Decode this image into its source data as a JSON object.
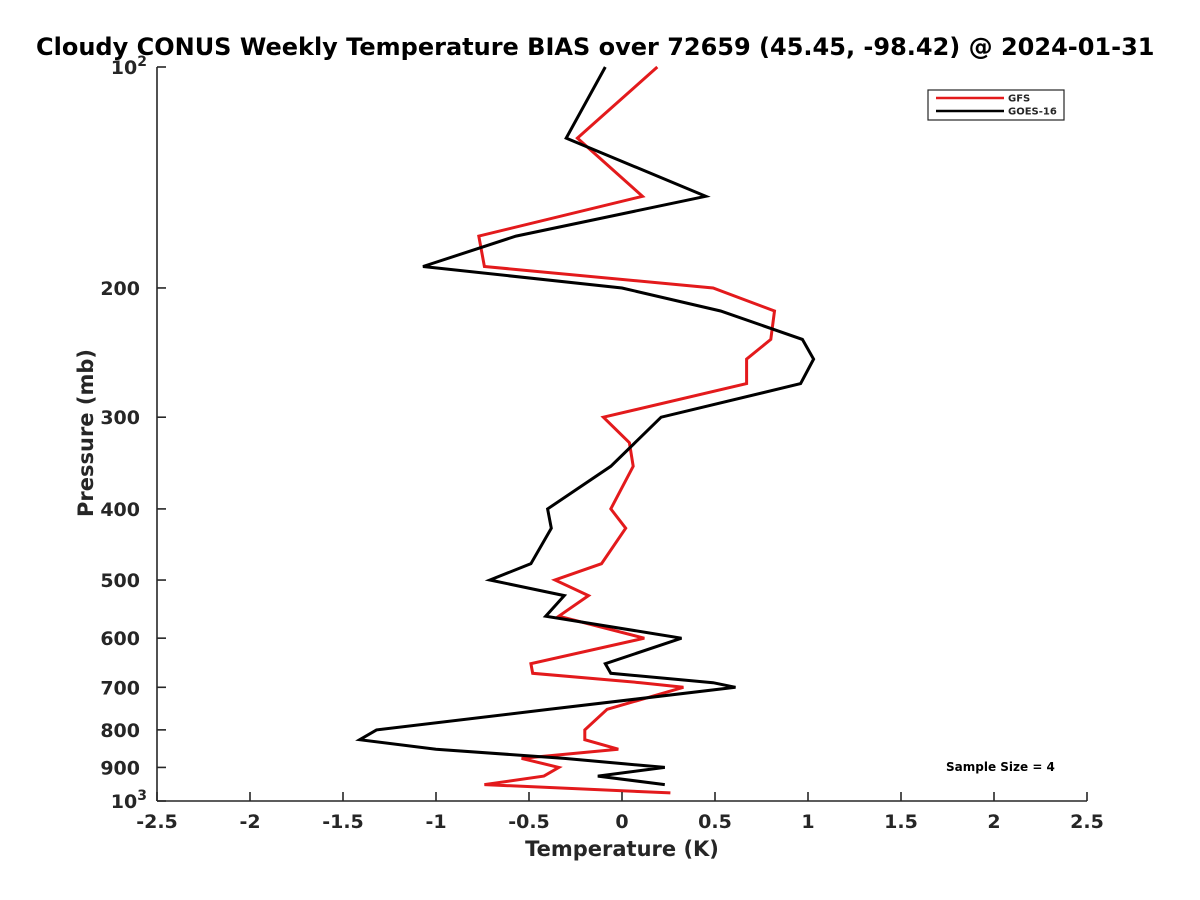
{
  "chart_data": {
    "type": "line",
    "title": "Cloudy CONUS Weekly Temperature BIAS over 72659 (45.45, -98.42) @ 2024-01-31",
    "xlabel": "Temperature (K)",
    "ylabel": "Pressure (mb)",
    "xlim": [
      -2.5,
      2.5
    ],
    "ylim": [
      100,
      1000
    ],
    "y_scale": "log",
    "y_reversed": true,
    "grid": false,
    "legend_position": "top-right",
    "x_ticks": [
      {
        "value": -2.5,
        "label": "-2.5"
      },
      {
        "value": -2,
        "label": "-2"
      },
      {
        "value": -1.5,
        "label": "-1.5"
      },
      {
        "value": -1,
        "label": "-1"
      },
      {
        "value": -0.5,
        "label": "-0.5"
      },
      {
        "value": 0,
        "label": "0"
      },
      {
        "value": 0.5,
        "label": "0.5"
      },
      {
        "value": 1,
        "label": "1"
      },
      {
        "value": 1.5,
        "label": "1.5"
      },
      {
        "value": 2,
        "label": "2"
      },
      {
        "value": 2.5,
        "label": "2.5"
      }
    ],
    "y_ticks": [
      {
        "value": 100,
        "label": "10",
        "sup": "2"
      },
      {
        "value": 200,
        "label": "200"
      },
      {
        "value": 300,
        "label": "300"
      },
      {
        "value": 400,
        "label": "400"
      },
      {
        "value": 500,
        "label": "500"
      },
      {
        "value": 600,
        "label": "600"
      },
      {
        "value": 700,
        "label": "700"
      },
      {
        "value": 800,
        "label": "800"
      },
      {
        "value": 900,
        "label": "900"
      },
      {
        "value": 1000,
        "label": "10",
        "sup": "3"
      }
    ],
    "annotation": "Sample Size = 4",
    "series": [
      {
        "name": "GFS",
        "color": "#e31a1c",
        "points": [
          {
            "p": 100,
            "t": 0.19
          },
          {
            "p": 125,
            "t": -0.24
          },
          {
            "p": 150,
            "t": 0.11
          },
          {
            "p": 170,
            "t": -0.77
          },
          {
            "p": 187,
            "t": -0.74
          },
          {
            "p": 200,
            "t": 0.49
          },
          {
            "p": 215,
            "t": 0.82
          },
          {
            "p": 235,
            "t": 0.8
          },
          {
            "p": 250,
            "t": 0.67
          },
          {
            "p": 270,
            "t": 0.67
          },
          {
            "p": 300,
            "t": -0.1
          },
          {
            "p": 325,
            "t": 0.04
          },
          {
            "p": 350,
            "t": 0.06
          },
          {
            "p": 400,
            "t": -0.06
          },
          {
            "p": 425,
            "t": 0.02
          },
          {
            "p": 475,
            "t": -0.11
          },
          {
            "p": 500,
            "t": -0.36
          },
          {
            "p": 525,
            "t": -0.18
          },
          {
            "p": 560,
            "t": -0.34
          },
          {
            "p": 600,
            "t": 0.12
          },
          {
            "p": 650,
            "t": -0.49
          },
          {
            "p": 670,
            "t": -0.48
          },
          {
            "p": 690,
            "t": 0.1
          },
          {
            "p": 700,
            "t": 0.33
          },
          {
            "p": 750,
            "t": -0.08
          },
          {
            "p": 800,
            "t": -0.2
          },
          {
            "p": 825,
            "t": -0.2
          },
          {
            "p": 850,
            "t": -0.02
          },
          {
            "p": 875,
            "t": -0.54
          },
          {
            "p": 900,
            "t": -0.34
          },
          {
            "p": 925,
            "t": -0.42
          },
          {
            "p": 950,
            "t": -0.74
          },
          {
            "p": 975,
            "t": 0.26
          }
        ]
      },
      {
        "name": "GOES-16",
        "color": "#000000",
        "points": [
          {
            "p": 100,
            "t": -0.09
          },
          {
            "p": 125,
            "t": -0.3
          },
          {
            "p": 150,
            "t": 0.45
          },
          {
            "p": 170,
            "t": -0.57
          },
          {
            "p": 187,
            "t": -1.07
          },
          {
            "p": 200,
            "t": 0.0
          },
          {
            "p": 215,
            "t": 0.53
          },
          {
            "p": 235,
            "t": 0.97
          },
          {
            "p": 250,
            "t": 1.03
          },
          {
            "p": 270,
            "t": 0.96
          },
          {
            "p": 300,
            "t": 0.21
          },
          {
            "p": 325,
            "t": 0.07
          },
          {
            "p": 350,
            "t": -0.06
          },
          {
            "p": 400,
            "t": -0.4
          },
          {
            "p": 425,
            "t": -0.38
          },
          {
            "p": 475,
            "t": -0.49
          },
          {
            "p": 500,
            "t": -0.71
          },
          {
            "p": 525,
            "t": -0.31
          },
          {
            "p": 560,
            "t": -0.41
          },
          {
            "p": 600,
            "t": 0.32
          },
          {
            "p": 650,
            "t": -0.09
          },
          {
            "p": 670,
            "t": -0.06
          },
          {
            "p": 690,
            "t": 0.49
          },
          {
            "p": 700,
            "t": 0.61
          },
          {
            "p": 750,
            "t": -0.39
          },
          {
            "p": 800,
            "t": -1.32
          },
          {
            "p": 825,
            "t": -1.41
          },
          {
            "p": 850,
            "t": -1.0
          },
          {
            "p": 875,
            "t": -0.31
          },
          {
            "p": 900,
            "t": 0.23
          },
          {
            "p": 925,
            "t": -0.13
          },
          {
            "p": 950,
            "t": 0.23
          }
        ]
      }
    ]
  }
}
